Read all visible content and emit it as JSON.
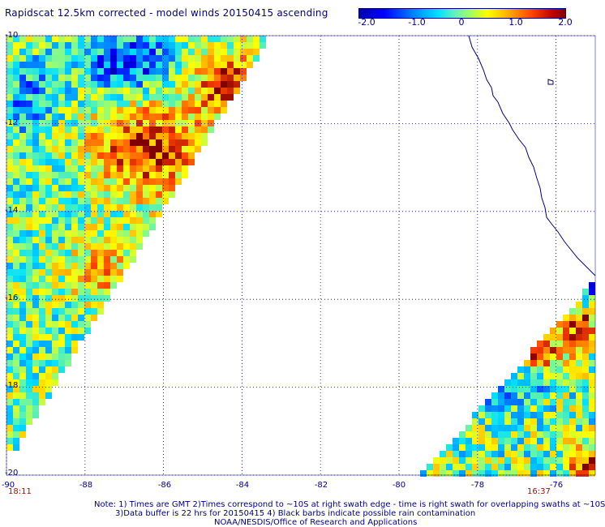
{
  "title": "Rapidscat 12.5km corrected - model winds 20150415 ascending",
  "colorbar": {
    "ticks": [
      "-2.0",
      "-1.0",
      "0",
      "1.0",
      "2.0"
    ],
    "range": [
      -2.0,
      2.0
    ],
    "colors": [
      "#0000b0",
      "#0000ff",
      "#00e0ff",
      "#a0ff60",
      "#ffff00",
      "#ffb000",
      "#ff4000",
      "#800000"
    ]
  },
  "map": {
    "lon_range": [
      -90,
      -75
    ],
    "lat_range": [
      -20,
      -10
    ],
    "lat_labels": [
      "-10",
      "-12",
      "-14",
      "-16",
      "-18",
      "-20"
    ],
    "lon_labels": [
      "-90",
      "-88",
      "-86",
      "-84",
      "-82",
      "-80",
      "-78",
      "-76"
    ],
    "grid": "dotted",
    "coastline_color": "#000080"
  },
  "times": {
    "left": "18:11",
    "right": "16:37"
  },
  "notes": [
    "Note: 1) Times are GMT 2)Times correspond to ~10S at right swath edge - time is right swath for overlapping swaths at ~10S",
    "3)Data buffer is 22 hrs for 20150415 4) Black barbs indicate possible rain contamination",
    "NOAA/NESDIS/Office of Research and Applications"
  ]
}
